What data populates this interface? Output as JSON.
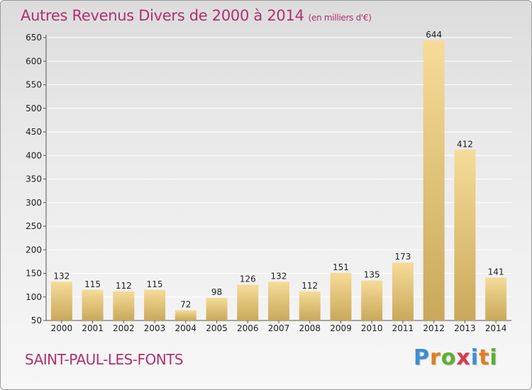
{
  "title": "Autres Revenus Divers de 2000 à 2014",
  "title_unit": "(en milliers d'€)",
  "commune": "SAINT-PAUL-LES-FONTS",
  "logo": {
    "text": "Proxiti",
    "colors": [
      "#3b8fd6",
      "#e27d1f",
      "#5bb030",
      "#d8394b",
      "#3b8fd6",
      "#e27d1f",
      "#5bb030"
    ]
  },
  "colors": {
    "bar_light": "#f6dc98",
    "bar_dark": "#c9a85a",
    "title": "#b0306e",
    "grid": "#ffffff"
  },
  "chart_data": {
    "type": "bar",
    "title": "Autres Revenus Divers de 2000 à 2014",
    "xlabel": "",
    "ylabel": "",
    "categories": [
      "2000",
      "2001",
      "2002",
      "2003",
      "2004",
      "2005",
      "2006",
      "2007",
      "2008",
      "2009",
      "2010",
      "2011",
      "2012",
      "2013",
      "2014"
    ],
    "values": [
      132,
      115,
      112,
      115,
      72,
      98,
      126,
      132,
      112,
      151,
      135,
      173,
      644,
      412,
      141
    ],
    "ylim": [
      50,
      650
    ],
    "yticks": [
      50,
      100,
      150,
      200,
      250,
      300,
      350,
      400,
      450,
      500,
      550,
      600,
      650
    ],
    "grid": true,
    "legend": "none"
  }
}
